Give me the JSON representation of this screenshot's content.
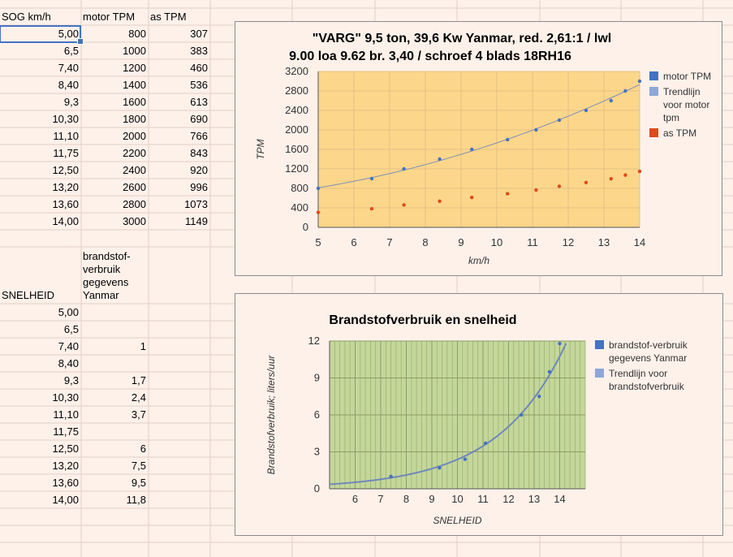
{
  "sheet": {
    "headers": {
      "a": "SOG km/h",
      "b": "motor TPM",
      "c": "as TPM"
    },
    "rows1": [
      {
        "a": "5,00",
        "b": "800",
        "c": "307"
      },
      {
        "a": "6,5",
        "b": "1000",
        "c": "383"
      },
      {
        "a": "7,40",
        "b": "1200",
        "c": "460"
      },
      {
        "a": "8,40",
        "b": "1400",
        "c": "536"
      },
      {
        "a": "9,3",
        "b": "1600",
        "c": "613"
      },
      {
        "a": "10,30",
        "b": "1800",
        "c": "690"
      },
      {
        "a": "11,10",
        "b": "2000",
        "c": "766"
      },
      {
        "a": "11,75",
        "b": "2200",
        "c": "843"
      },
      {
        "a": "12,50",
        "b": "2400",
        "c": "920"
      },
      {
        "a": "13,20",
        "b": "2600",
        "c": "996"
      },
      {
        "a": "13,60",
        "b": "2800",
        "c": "1073"
      },
      {
        "a": "14,00",
        "b": "3000",
        "c": "1149"
      }
    ],
    "header2": {
      "a": "SNELHEID",
      "b": "brandstof-verbruik gegevens Yanmar"
    },
    "rows2": [
      {
        "a": "5,00",
        "b": ""
      },
      {
        "a": "6,5",
        "b": ""
      },
      {
        "a": "7,40",
        "b": "1"
      },
      {
        "a": "8,40",
        "b": ""
      },
      {
        "a": "9,3",
        "b": "1,7"
      },
      {
        "a": "10,30",
        "b": "2,4"
      },
      {
        "a": "11,10",
        "b": "3,7"
      },
      {
        "a": "11,75",
        "b": ""
      },
      {
        "a": "12,50",
        "b": "6"
      },
      {
        "a": "13,20",
        "b": "7,5"
      },
      {
        "a": "13,60",
        "b": "9,5"
      },
      {
        "a": "14,00",
        "b": "11,8"
      }
    ]
  },
  "chart_data": [
    {
      "type": "scatter",
      "title_line1": "\"VARG\" 9,5 ton, 39,6 Kw Yanmar, red. 2,61:1 / lwl",
      "title_line2": "9.00 loa 9.62 br. 3,40 / schroef 4 blads 18RH16",
      "xlabel": "km/h",
      "ylabel": "TPM",
      "xlim": [
        5,
        14
      ],
      "ylim": [
        0,
        3200
      ],
      "xticks": [
        "5",
        "6",
        "7",
        "8",
        "9",
        "10",
        "11",
        "12",
        "13",
        "14"
      ],
      "yticks": [
        "0",
        "400",
        "800",
        "1200",
        "1600",
        "2000",
        "2400",
        "2800",
        "3200"
      ],
      "plot_bg": "#fcd68a",
      "grid": true,
      "legend_position": "right",
      "series": [
        {
          "name": "motor TPM",
          "color": "#4472c4",
          "x": [
            5.0,
            6.5,
            7.4,
            8.4,
            9.3,
            10.3,
            11.1,
            11.75,
            12.5,
            13.2,
            13.6,
            14.0
          ],
          "y": [
            800,
            1000,
            1200,
            1400,
            1600,
            1800,
            2000,
            2200,
            2400,
            2600,
            2800,
            3000
          ]
        },
        {
          "name": "as TPM",
          "color": "#e04a1c",
          "x": [
            5.0,
            6.5,
            7.4,
            8.4,
            9.3,
            10.3,
            11.1,
            11.75,
            12.5,
            13.2,
            13.6,
            14.0
          ],
          "y": [
            307,
            383,
            460,
            536,
            613,
            690,
            766,
            843,
            920,
            996,
            1073,
            1149
          ]
        }
      ],
      "trendline": {
        "name": "Trendlijn voor motor TPM",
        "color": "#8ea6d8"
      }
    },
    {
      "type": "scatter",
      "title": "Brandstofverbruik en snelheid",
      "xlabel": "SNELHEID",
      "ylabel": "Brandstofverbruik; liters/uur",
      "xlim": [
        5,
        15
      ],
      "ylim": [
        0,
        12
      ],
      "xticks": [
        "6",
        "7",
        "8",
        "9",
        "10",
        "11",
        "12",
        "13",
        "14"
      ],
      "yticks": [
        "0",
        "3",
        "6",
        "9",
        "12"
      ],
      "plot_bg": "#c4d79b",
      "grid": true,
      "legend_position": "right",
      "series": [
        {
          "name": "brandstof-verbruik gegevens Yanmar",
          "color": "#4472c4",
          "x": [
            7.4,
            9.3,
            10.3,
            11.1,
            12.5,
            13.2,
            13.6,
            14.0
          ],
          "y": [
            1,
            1.7,
            2.4,
            3.7,
            6,
            7.5,
            9.5,
            11.8
          ]
        }
      ],
      "trendline": {
        "name": "Trendlijn voor brandstofverbruik",
        "color": "#8ea6d8"
      }
    }
  ]
}
